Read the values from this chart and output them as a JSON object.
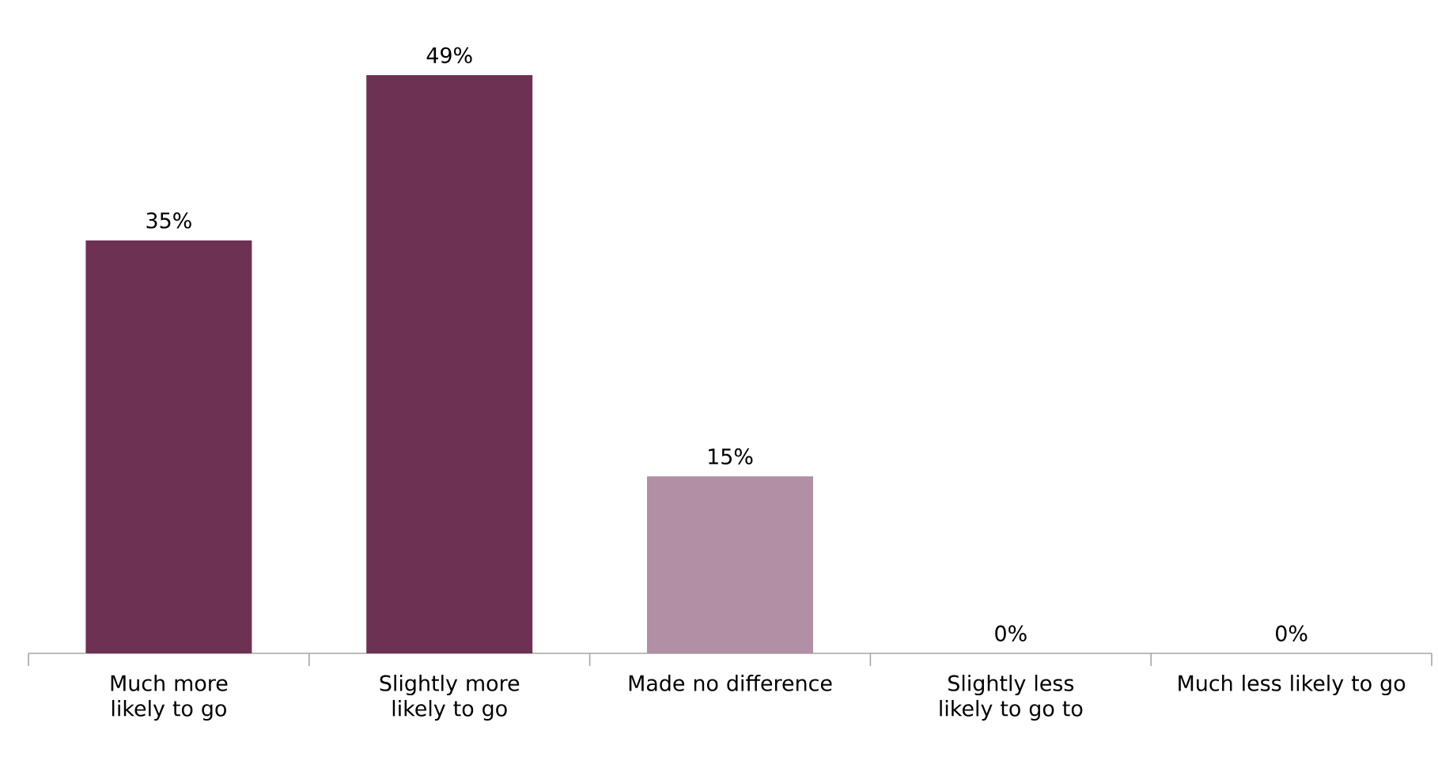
{
  "chart_data": {
    "type": "bar",
    "categories": [
      "Much more likely to go",
      "Slightly more likely to go",
      "Made no difference",
      "Slightly less likely to go to",
      "Much less likely to go"
    ],
    "values": [
      35,
      49,
      15,
      0,
      0
    ],
    "value_labels": [
      "35%",
      "49%",
      "15%",
      "0%",
      "0%"
    ],
    "colors": [
      "#6d3153",
      "#6d3153",
      "#b28fa5",
      "#b28fa5",
      "#b28fa5"
    ]
  }
}
